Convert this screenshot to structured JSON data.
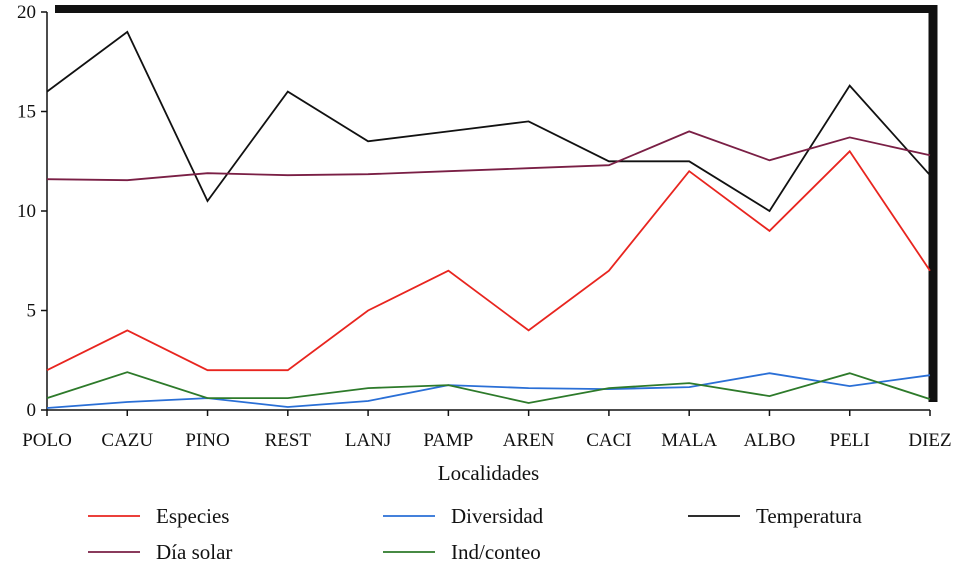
{
  "chart_data": {
    "type": "line",
    "categories": [
      "POLO",
      "CAZU",
      "PINO",
      "REST",
      "LANJ",
      "PAMP",
      "AREN",
      "CACI",
      "MALA",
      "ALBO",
      "PELI",
      "DIEZ"
    ],
    "xlabel": "Localidades",
    "ylabel": "",
    "ylim": [
      0,
      20
    ],
    "yticks": [
      0,
      5,
      10,
      15,
      20
    ],
    "grid": false,
    "legend_position": "bottom",
    "series": [
      {
        "name": "Especies",
        "color": "#e8251f",
        "values": [
          2,
          4,
          2,
          2,
          5,
          7,
          4,
          7,
          12,
          9,
          13,
          7
        ]
      },
      {
        "name": "Diversidad",
        "color": "#2a6fd6",
        "values": [
          0.1,
          0.4,
          0.6,
          0.15,
          0.45,
          1.25,
          1.1,
          1.05,
          1.15,
          1.85,
          1.2,
          1.75
        ]
      },
      {
        "name": "Temperatura",
        "color": "#111111",
        "values": [
          16,
          19,
          10.5,
          16,
          13.5,
          14,
          14.5,
          12.5,
          12.5,
          10,
          16.3,
          11.8
        ]
      },
      {
        "name": "Día solar",
        "color": "#7a1f45",
        "values": [
          11.6,
          11.55,
          11.9,
          11.8,
          11.85,
          12.0,
          12.15,
          12.3,
          14.0,
          12.55,
          13.7,
          12.8
        ]
      },
      {
        "name": "Ind/conteo",
        "color": "#2d7a2a",
        "values": [
          0.6,
          1.9,
          0.6,
          0.6,
          1.1,
          1.25,
          0.35,
          1.1,
          1.35,
          0.7,
          1.85,
          0.55
        ]
      }
    ]
  }
}
